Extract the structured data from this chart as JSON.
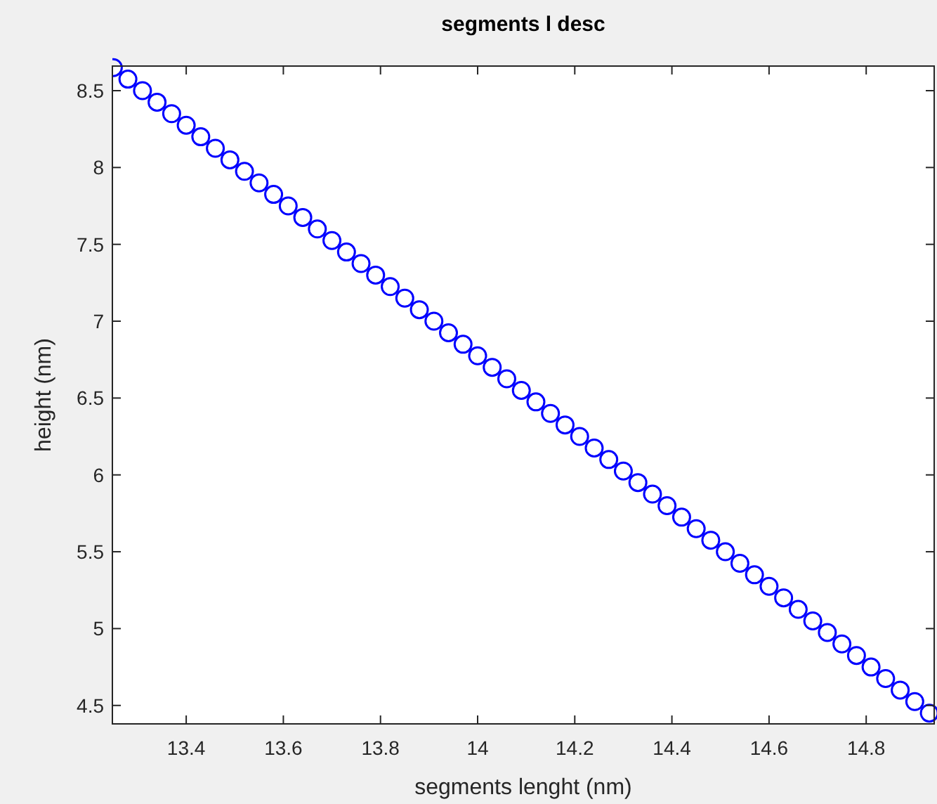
{
  "chart_data": {
    "type": "scatter",
    "title": "segments l desc",
    "xlabel": "segments lenght (nm)",
    "ylabel": "height (nm)",
    "marker": "circle",
    "xlim": [
      13.248,
      14.94
    ],
    "xticks": [
      13.4,
      13.6,
      13.8,
      14,
      14.2,
      14.4,
      14.6,
      14.8
    ],
    "ylim": [
      4.38,
      8.66
    ],
    "yticks": [
      4.5,
      5,
      5.5,
      6,
      6.5,
      7,
      7.5,
      8,
      8.5
    ],
    "series": [
      {
        "color": "#0000ff",
        "x": [
          13.25,
          13.28,
          13.31,
          13.34,
          13.37,
          13.4,
          13.43,
          13.46,
          13.49,
          13.52,
          13.55,
          13.58,
          13.61,
          13.64,
          13.67,
          13.7,
          13.73,
          13.76,
          13.79,
          13.82,
          13.85,
          13.88,
          13.91,
          13.94,
          13.97,
          14.0,
          14.03,
          14.06,
          14.09,
          14.12,
          14.15,
          14.18,
          14.21,
          14.24,
          14.27,
          14.3,
          14.33,
          14.36,
          14.39,
          14.42,
          14.45,
          14.48,
          14.51,
          14.54,
          14.57,
          14.6,
          14.63,
          14.66,
          14.69,
          14.72,
          14.75,
          14.78,
          14.81,
          14.84,
          14.87,
          14.9,
          14.93
        ],
        "values": [
          8.65,
          8.575,
          8.5,
          8.425,
          8.35,
          8.275,
          8.2,
          8.125,
          8.05,
          7.975,
          7.9,
          7.825,
          7.75,
          7.675,
          7.6,
          7.525,
          7.45,
          7.375,
          7.3,
          7.225,
          7.15,
          7.075,
          7.0,
          6.925,
          6.85,
          6.775,
          6.7,
          6.625,
          6.55,
          6.475,
          6.4,
          6.325,
          6.25,
          6.175,
          6.1,
          6.025,
          5.95,
          5.875,
          5.8,
          5.725,
          5.65,
          5.575,
          5.5,
          5.425,
          5.35,
          5.275,
          5.2,
          5.125,
          5.05,
          4.975,
          4.9,
          4.825,
          4.75,
          4.675,
          4.6,
          4.525,
          4.45
        ]
      }
    ]
  }
}
